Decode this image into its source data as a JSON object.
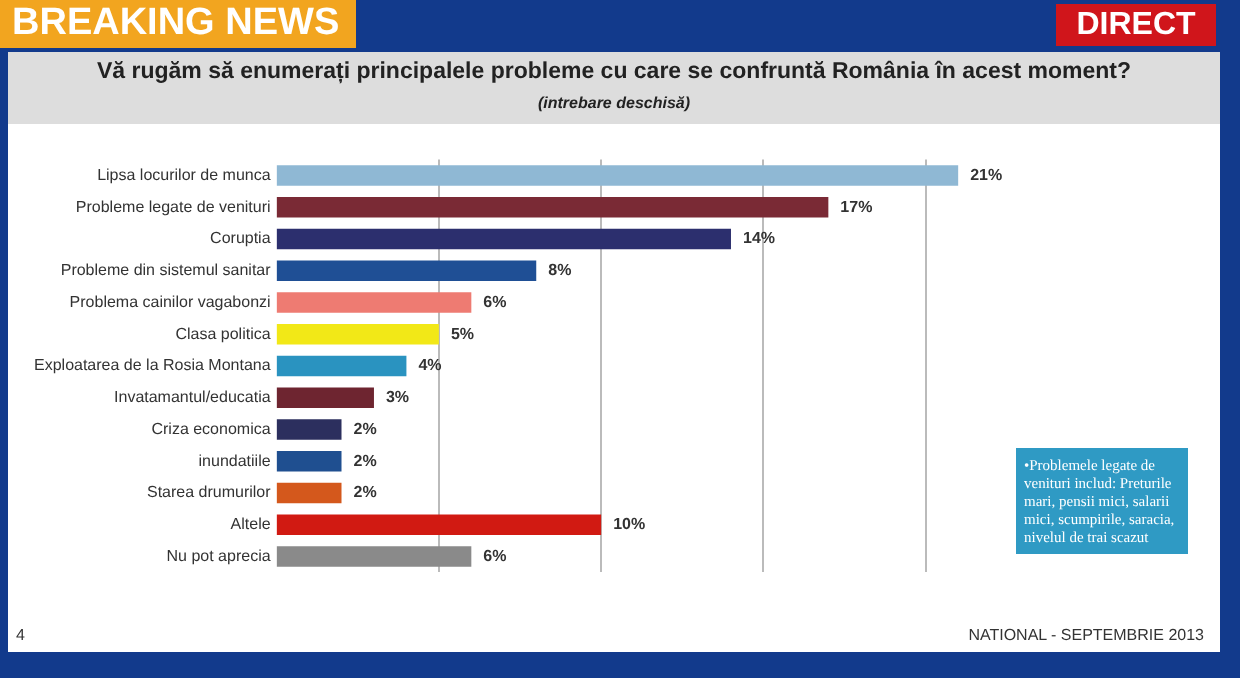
{
  "chart_data": {
    "type": "bar",
    "orientation": "horizontal",
    "title": "Vă rugăm să enumerați principalele probleme cu care se confruntă România în acest moment?",
    "subtitle": "(intrebare deschisă)",
    "categories": [
      "Lipsa locurilor de munca",
      "Probleme legate de venituri",
      "Coruptia",
      "Probleme din sistemul sanitar",
      "Problema cainilor vagabonzi",
      "Clasa politica",
      "Exploatarea de la Rosia Montana",
      "Invatamantul/educatia",
      "Criza economica",
      "inundatiile",
      "Starea drumurilor",
      "Altele",
      "Nu pot aprecia"
    ],
    "values": [
      21,
      17,
      14,
      8,
      6,
      5,
      4,
      3,
      2,
      2,
      2,
      10,
      6
    ],
    "value_labels": [
      "21%",
      "17%",
      "14%",
      "8%",
      "6%",
      "5%",
      "4%",
      "3%",
      "2%",
      "2%",
      "2%",
      "10%",
      "6%"
    ],
    "colors": [
      "#8fb8d4",
      "#7a2a35",
      "#2c2f6e",
      "#1f4f95",
      "#ee7b72",
      "#f2e817",
      "#2a93c0",
      "#6e2530",
      "#2c2f5e",
      "#1f4f90",
      "#d4581c",
      "#d11a12",
      "#8a8a8a"
    ],
    "xticks": [
      {
        "value": 5,
        "label": null
      },
      {
        "value": 10,
        "label": null
      },
      {
        "value": 15,
        "label": null
      },
      {
        "value": 20,
        "label": null
      }
    ],
    "grid": "x",
    "tick_labels": "y",
    "legend": false,
    "annotations": [
      "BREAKING NEWS",
      "DIRECT",
      "•Problemele legate de venituri includ: Preturile mari, pensii mici, salarii mici, scumpirile, saracia, nivelul de trai scazut",
      "NATIONAL - SEPTEMBRIE 2013",
      "4"
    ]
  }
}
